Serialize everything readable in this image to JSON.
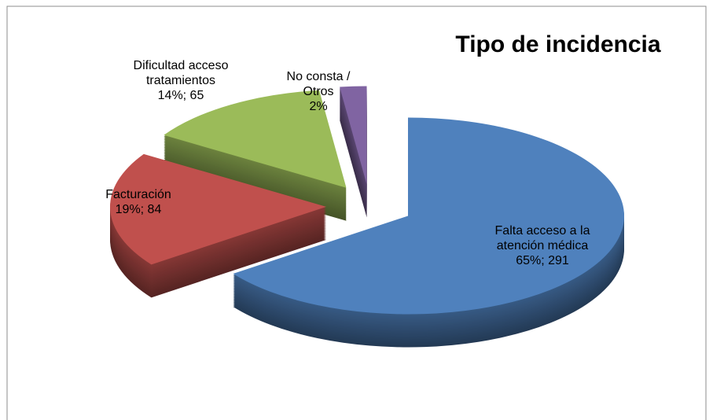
{
  "chart_data": {
    "type": "pie",
    "title": "Tipo de incidencia",
    "categories": [
      "Falta acceso a la atención médica",
      "Facturación",
      "Dificultad acceso tratamientos",
      "No consta / Otros"
    ],
    "values": [
      65,
      19,
      14,
      2
    ],
    "value_labels": [
      "65%; 291",
      "19%; 84",
      "14%; 65",
      "2%"
    ],
    "colors": [
      "#4f81bd",
      "#c0504d",
      "#9bbb59",
      "#8064a2"
    ]
  }
}
